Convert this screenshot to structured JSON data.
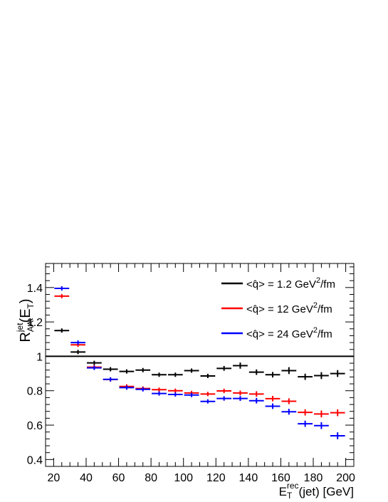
{
  "chart_data": {
    "type": "scatter",
    "title": "",
    "xlabel": {
      "main": "E",
      "sub": "T",
      "sup": "rec",
      "tail": "(jet) [GeV]"
    },
    "ylabel": {
      "main": "R",
      "sub": "AA",
      "sup": "jet",
      "tail_open": "(E",
      "tail_sub": "T",
      "tail_close": ")"
    },
    "xlim": [
      15,
      205
    ],
    "ylim": [
      0.36,
      1.54
    ],
    "x_ticks": [
      20,
      40,
      60,
      80,
      100,
      120,
      140,
      160,
      180,
      200
    ],
    "x_tick_labels": [
      "20",
      "40",
      "60",
      "80",
      "100",
      "120",
      "140",
      "160",
      "180",
      "200"
    ],
    "y_ticks": [
      0.4,
      0.6,
      0.8,
      1.0,
      1.2,
      1.4
    ],
    "y_tick_labels": [
      "0.4",
      "0.6",
      "0.8",
      "1",
      "1.2",
      "1.4"
    ],
    "reference_line": {
      "y": 1.0,
      "color": "#000000"
    },
    "legend_position": "top-right",
    "series": [
      {
        "name": "<q̂> = 1.2 GeV²/fm",
        "legend_label": {
          "prefix": "<q̂> = 1.2 GeV",
          "sup": "2",
          "suffix": "/fm"
        },
        "color": "#000000",
        "x_halfwidth": 5,
        "x": [
          25,
          35,
          45,
          55,
          65,
          75,
          85,
          95,
          105,
          115,
          125,
          135,
          145,
          155,
          165,
          175,
          185,
          195
        ],
        "y": [
          1.15,
          1.025,
          0.962,
          0.925,
          0.912,
          0.92,
          0.893,
          0.893,
          0.917,
          0.886,
          0.93,
          0.946,
          0.908,
          0.893,
          0.917,
          0.881,
          0.888,
          0.9
        ],
        "yerr": [
          0.004,
          0.004,
          0.006,
          0.006,
          0.007,
          0.008,
          0.008,
          0.009,
          0.012,
          0.012,
          0.014,
          0.018,
          0.016,
          0.016,
          0.02,
          0.018,
          0.02,
          0.02
        ]
      },
      {
        "name": "<q̂> = 12 GeV²/fm",
        "legend_label": {
          "prefix": "<q̂> = 12 GeV",
          "sup": "2",
          "suffix": "/fm"
        },
        "color": "#ff0000",
        "x_halfwidth": 5,
        "x": [
          25,
          35,
          45,
          55,
          65,
          75,
          85,
          95,
          105,
          115,
          125,
          135,
          145,
          155,
          165,
          175,
          185,
          195
        ],
        "y": [
          1.35,
          1.067,
          0.937,
          0.865,
          0.825,
          0.813,
          0.806,
          0.8,
          0.787,
          0.781,
          0.799,
          0.787,
          0.781,
          0.754,
          0.739,
          0.674,
          0.665,
          0.672
        ],
        "yerr": [
          0.005,
          0.005,
          0.006,
          0.006,
          0.007,
          0.008,
          0.008,
          0.009,
          0.01,
          0.011,
          0.013,
          0.014,
          0.016,
          0.016,
          0.017,
          0.018,
          0.02,
          0.02
        ]
      },
      {
        "name": "<q̂> = 24 GeV²/fm",
        "legend_label": {
          "prefix": "<q̂> = 24 GeV",
          "sup": "2",
          "suffix": "/fm"
        },
        "color": "#0000ff",
        "x_halfwidth": 5,
        "x": [
          25,
          35,
          45,
          55,
          65,
          75,
          85,
          95,
          105,
          115,
          125,
          135,
          145,
          155,
          165,
          175,
          185,
          195
        ],
        "y": [
          1.395,
          1.08,
          0.933,
          0.866,
          0.818,
          0.808,
          0.784,
          0.778,
          0.775,
          0.738,
          0.755,
          0.755,
          0.742,
          0.71,
          0.678,
          0.608,
          0.597,
          0.538
        ],
        "yerr": [
          0.005,
          0.005,
          0.006,
          0.006,
          0.007,
          0.008,
          0.008,
          0.009,
          0.01,
          0.011,
          0.013,
          0.014,
          0.016,
          0.016,
          0.017,
          0.018,
          0.02,
          0.02
        ]
      }
    ]
  }
}
